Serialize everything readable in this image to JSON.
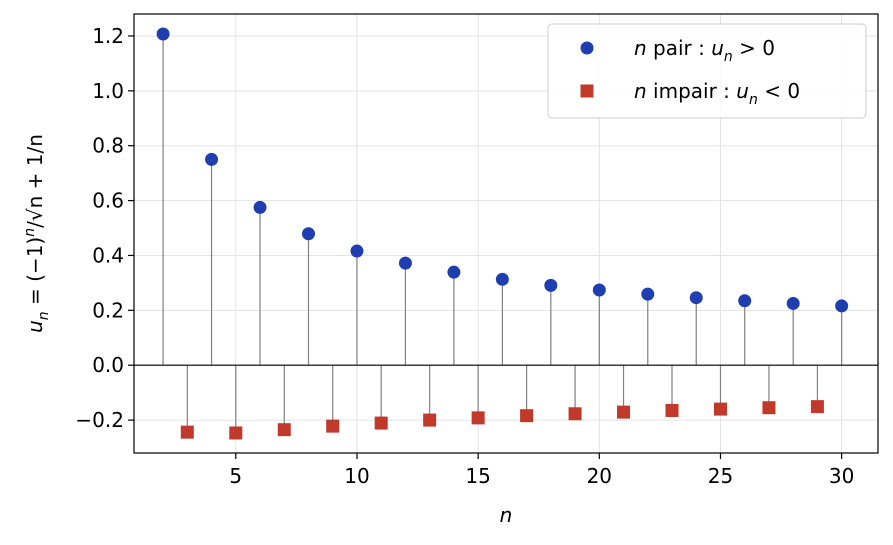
{
  "chart_data": {
    "type": "scatter",
    "xlabel": "n",
    "ylabel": {
      "prefix": "u",
      "sub": "n",
      "rest": " = (−1)",
      "sup": "n",
      "tail": "/√n + 1/n"
    },
    "xlim": [
      0.8,
      31.5
    ],
    "ylim": [
      -0.32,
      1.28
    ],
    "xticks": [
      5,
      10,
      15,
      20,
      25,
      30
    ],
    "yticks": [
      -0.2,
      0.0,
      0.2,
      0.4,
      0.6,
      0.8,
      1.0,
      1.2
    ],
    "ytick_labels": [
      "−0.2",
      "0.0",
      "0.2",
      "0.4",
      "0.6",
      "0.8",
      "1.0",
      "1.2"
    ],
    "grid": true,
    "legend_position": "top-right",
    "series": [
      {
        "name": "n pair : u_n > 0",
        "legend": {
          "a": "n",
          "b": " pair : ",
          "c": "u",
          "d": "n",
          "e": " > 0"
        },
        "marker": "circle",
        "color": "#1f3fb0",
        "x": [
          2,
          4,
          6,
          8,
          10,
          12,
          14,
          16,
          18,
          20,
          22,
          24,
          26,
          28,
          30
        ],
        "y": [
          1.207,
          0.75,
          0.575,
          0.479,
          0.416,
          0.372,
          0.339,
          0.313,
          0.291,
          0.274,
          0.259,
          0.246,
          0.235,
          0.225,
          0.216
        ]
      },
      {
        "name": "n impair : u_n < 0",
        "legend": {
          "a": "n",
          "b": " impair : ",
          "c": "u",
          "d": "n",
          "e": " < 0"
        },
        "marker": "square",
        "color": "#c0392b",
        "x": [
          3,
          5,
          7,
          9,
          11,
          13,
          15,
          17,
          19,
          21,
          23,
          25,
          27,
          29
        ],
        "y": [
          -0.244,
          -0.247,
          -0.235,
          -0.222,
          -0.211,
          -0.2,
          -0.192,
          -0.184,
          -0.177,
          -0.171,
          -0.165,
          -0.16,
          -0.155,
          -0.151
        ]
      }
    ]
  }
}
